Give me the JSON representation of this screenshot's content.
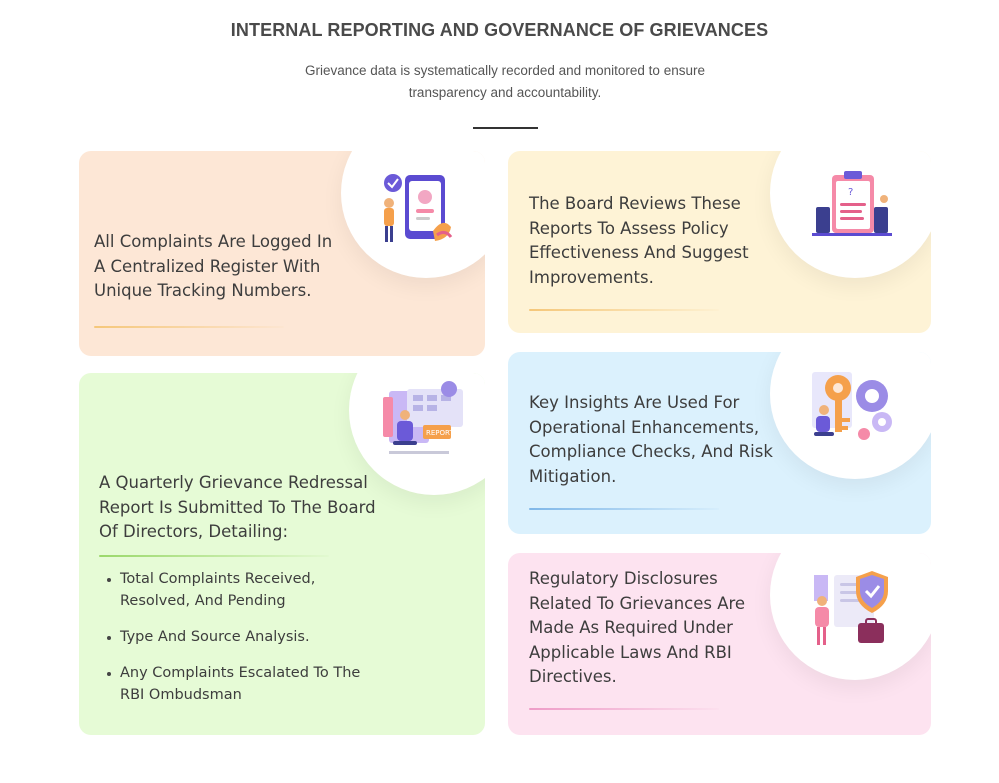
{
  "header": {
    "title": "INTERNAL REPORTING AND GOVERNANCE OF GRIEVANCES",
    "subtitle": "Grievance data is systematically recorded and monitored to ensure transparency and accountability."
  },
  "cards": [
    {
      "text": "All Complaints Are Logged In A Centralized Register With Unique Tracking Numbers.",
      "background": "#fde7d6",
      "accent": "#f5c77a",
      "icon": "document-register-icon"
    },
    {
      "text": "The Board Reviews These Reports To Assess Policy Effectiveness And Suggest Improvements.",
      "background": "#fef3d6",
      "accent": "#f5c77a",
      "icon": "clipboard-review-icon"
    },
    {
      "text": "A Quarterly Grievance Redressal Report Is Submitted To The Board Of Directors, Detailing:",
      "background": "#e6fbd6",
      "accent": "#9bd86b",
      "icon": "report-submission-icon",
      "bullets": [
        "Total Complaints Received, Resolved, And Pending",
        "Type And Source Analysis.",
        "Any Complaints Escalated To The RBI Ombudsman"
      ]
    },
    {
      "text": "Key Insights Are Used For Operational Enhancements, Compliance Checks, And Risk Mitigation.",
      "background": "#dbf1fd",
      "accent": "#7fb7e8",
      "icon": "key-gears-icon"
    },
    {
      "text": "Regulatory Disclosures Related To Grievances Are Made As Required Under Applicable Laws And RBI Directives.",
      "background": "#fde3f0",
      "accent": "#ee9cc7",
      "icon": "shield-compliance-icon"
    }
  ]
}
